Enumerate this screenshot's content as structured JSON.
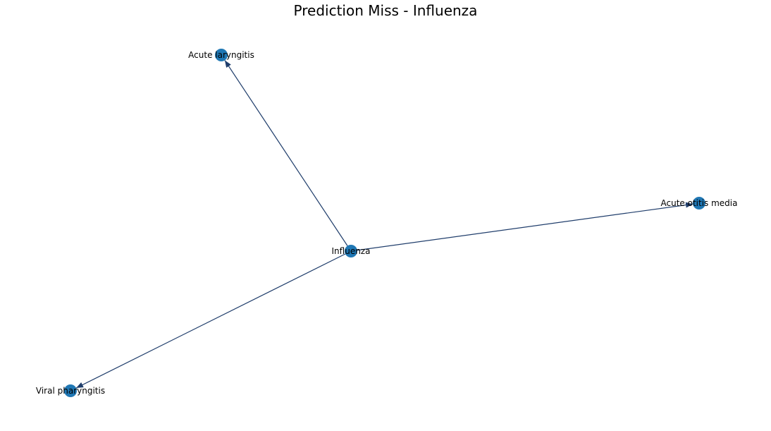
{
  "title": "Prediction Miss - Influenza",
  "colors": {
    "node": "#1f77b4",
    "edge": "#1f3d6b",
    "text": "#000000",
    "background": "#ffffff"
  },
  "graph": {
    "directed": true,
    "nodes": [
      {
        "id": "influenza",
        "label": "Influenza"
      },
      {
        "id": "acute_laryngitis",
        "label": "Acute laryngitis"
      },
      {
        "id": "acute_otitis_media",
        "label": "Acute otitis media"
      },
      {
        "id": "viral_pharyngitis",
        "label": "Viral pharyngitis"
      }
    ],
    "edges": [
      {
        "source": "influenza",
        "target": "acute_laryngitis"
      },
      {
        "source": "influenza",
        "target": "acute_otitis_media"
      },
      {
        "source": "influenza",
        "target": "viral_pharyngitis"
      }
    ]
  }
}
